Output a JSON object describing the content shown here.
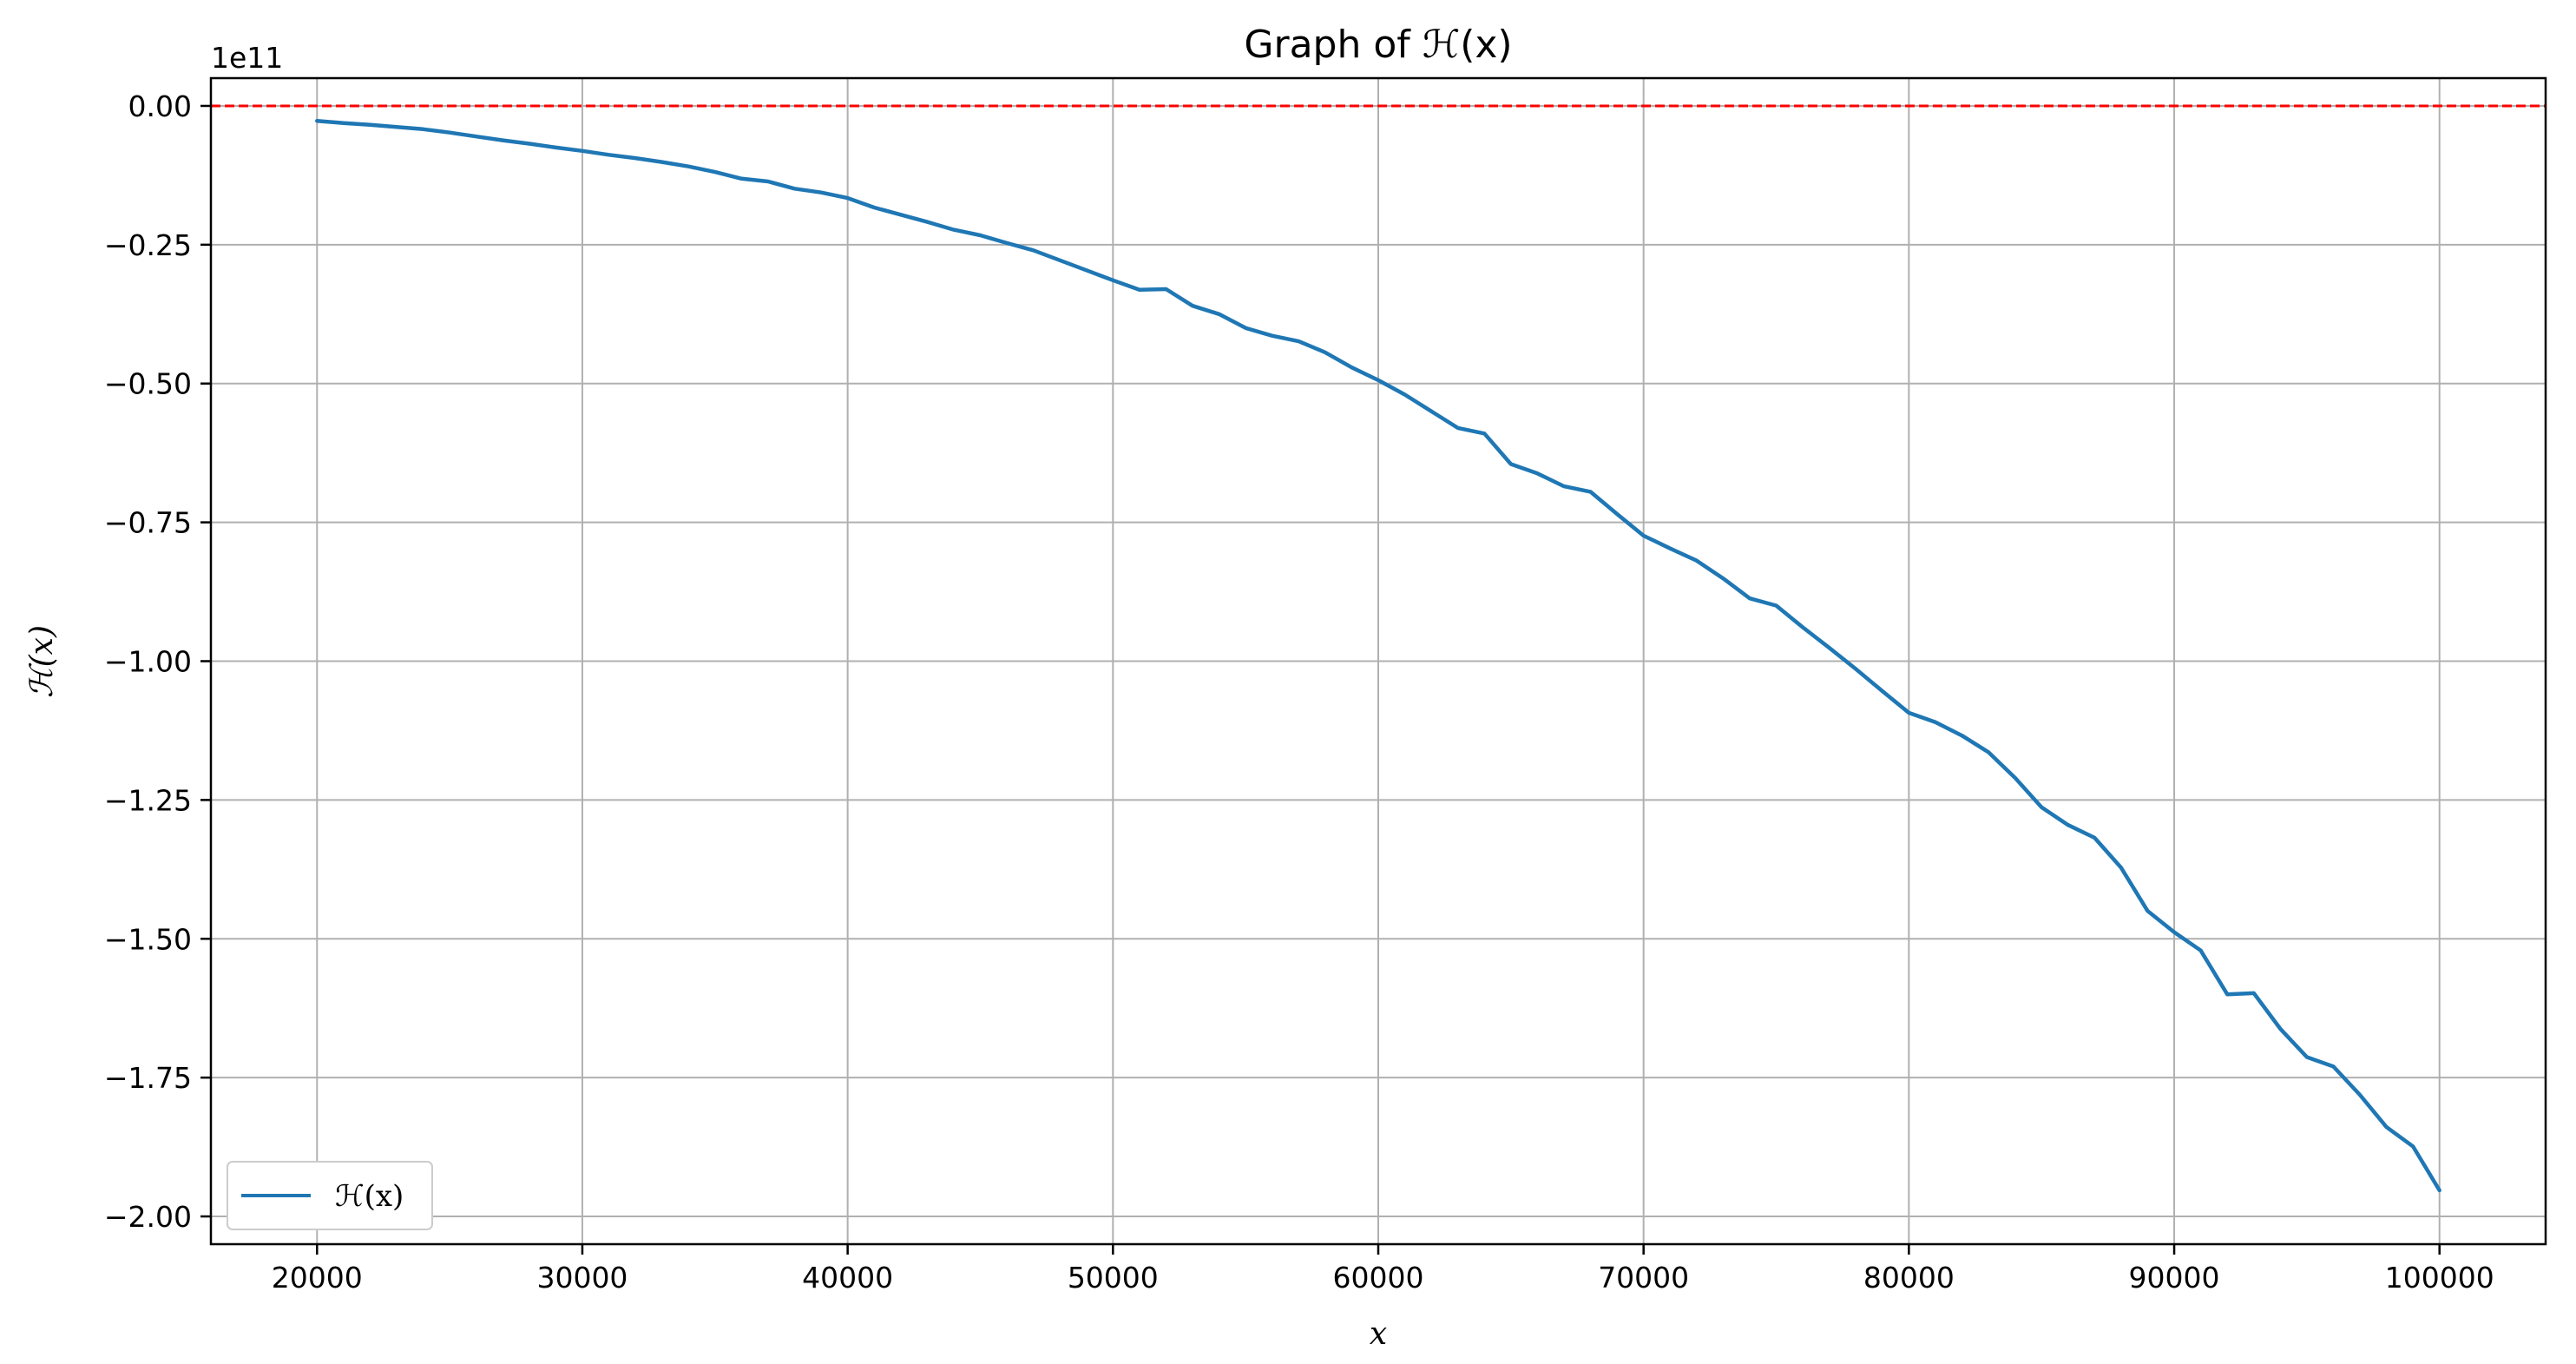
{
  "chart_data": {
    "type": "line",
    "title": "Graph of ℋ(x)",
    "xlabel": "x",
    "ylabel": "ℋ(x)",
    "y_offset_label": "1e11",
    "xlim": [
      16000,
      104000
    ],
    "ylim": [
      -2.05,
      0.05
    ],
    "xticks": [
      20000,
      30000,
      40000,
      50000,
      60000,
      70000,
      80000,
      90000,
      100000
    ],
    "xtick_labels": [
      "20000",
      "30000",
      "40000",
      "50000",
      "60000",
      "70000",
      "80000",
      "90000",
      "100000"
    ],
    "yticks": [
      0.0,
      -0.25,
      -0.5,
      -0.75,
      -1.0,
      -1.25,
      -1.5,
      -1.75,
      -2.0
    ],
    "ytick_labels": [
      "0.00",
      "−0.25",
      "−0.50",
      "−0.75",
      "−1.00",
      "−1.25",
      "−1.50",
      "−1.75",
      "−2.00"
    ],
    "grid": true,
    "legend_position": "lower-left",
    "reference_line": {
      "y": 0,
      "color": "#ff0000",
      "style": "dashed"
    },
    "series": [
      {
        "name": "ℋ(x)",
        "color": "#1f77b4",
        "x": [
          20000,
          21000,
          22000,
          23000,
          24000,
          25000,
          26000,
          27000,
          28000,
          29000,
          30000,
          31000,
          32000,
          33000,
          34000,
          35000,
          36000,
          37000,
          38000,
          39000,
          40000,
          41000,
          42000,
          43000,
          44000,
          45000,
          46000,
          47000,
          48000,
          49000,
          50000,
          51000,
          52000,
          53000,
          54000,
          55000,
          56000,
          57000,
          58000,
          59000,
          60000,
          61000,
          62000,
          63000,
          64000,
          65000,
          66000,
          67000,
          68000,
          69000,
          70000,
          71000,
          72000,
          73000,
          74000,
          75000,
          76000,
          77000,
          78000,
          79000,
          80000,
          81000,
          82000,
          83000,
          84000,
          85000,
          86000,
          87000,
          88000,
          89000,
          90000,
          91000,
          92000,
          93000,
          94000,
          95000,
          96000,
          97000,
          98000,
          99000,
          100000
        ],
        "y": [
          -0.027,
          -0.031,
          -0.034,
          -0.038,
          -0.042,
          -0.048,
          -0.055,
          -0.062,
          -0.068,
          -0.075,
          -0.081,
          -0.088,
          -0.094,
          -0.101,
          -0.109,
          -0.119,
          -0.131,
          -0.136,
          -0.149,
          -0.156,
          -0.166,
          -0.183,
          -0.196,
          -0.209,
          -0.223,
          -0.233,
          -0.247,
          -0.26,
          -0.278,
          -0.296,
          -0.314,
          -0.331,
          -0.33,
          -0.36,
          -0.375,
          -0.4,
          -0.414,
          -0.424,
          -0.444,
          -0.471,
          -0.494,
          -0.52,
          -0.55,
          -0.58,
          -0.59,
          -0.645,
          -0.662,
          -0.685,
          -0.695,
          -0.735,
          -0.774,
          -0.797,
          -0.819,
          -0.851,
          -0.887,
          -0.9,
          -0.939,
          -0.976,
          -1.014,
          -1.054,
          -1.093,
          -1.11,
          -1.134,
          -1.164,
          -1.21,
          -1.263,
          -1.295,
          -1.318,
          -1.372,
          -1.45,
          -1.488,
          -1.521,
          -1.6,
          -1.598,
          -1.662,
          -1.713,
          -1.73,
          -1.781,
          -1.839,
          -1.874,
          -1.953
        ]
      }
    ]
  }
}
